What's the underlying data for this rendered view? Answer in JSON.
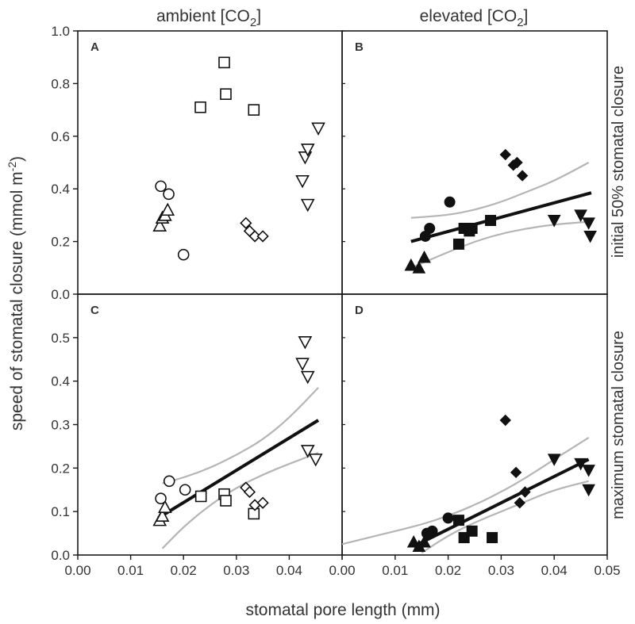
{
  "figure": {
    "column_titles": [
      "ambient [CO",
      "elevated [CO"
    ],
    "column_subscript": "2",
    "column_suffix": "]",
    "row_labels": [
      "initial 50% stomatal closure",
      "maximum stomatal closure"
    ],
    "xlabel": "stomatal pore length (mm)",
    "ylabel_main": "speed of stomatal closure (mmol m",
    "ylabel_sup": "-2",
    "ylabel_end": ")"
  },
  "chart_data": [
    {
      "panel": "A",
      "type": "scatter",
      "co2": "ambient",
      "row": "initial 50% stomatal closure",
      "xlim": [
        0,
        0.05
      ],
      "ylim": [
        0,
        1.0
      ],
      "xticks": [
        0,
        0.01,
        0.02,
        0.03,
        0.04,
        0.05
      ],
      "xtick_labels": [
        "0.00",
        "0.01",
        "0.02",
        "0.03",
        "0.04",
        "0.05"
      ],
      "yticks": [
        0,
        0.2,
        0.4,
        0.6,
        0.8,
        1.0
      ],
      "ytick_labels": [
        "0.0",
        "0.2",
        "0.4",
        "0.6",
        "0.8",
        "1.0"
      ],
      "filled": false,
      "series": [
        {
          "marker": "triangle-up",
          "points": [
            [
              0.0155,
              0.26
            ],
            [
              0.016,
              0.29
            ],
            [
              0.0165,
              0.3
            ],
            [
              0.017,
              0.32
            ]
          ]
        },
        {
          "marker": "circle",
          "points": [
            [
              0.0157,
              0.41
            ],
            [
              0.0172,
              0.38
            ],
            [
              0.02,
              0.15
            ]
          ]
        },
        {
          "marker": "square",
          "points": [
            [
              0.0232,
              0.71
            ],
            [
              0.0277,
              0.88
            ],
            [
              0.028,
              0.76
            ],
            [
              0.0333,
              0.7
            ]
          ]
        },
        {
          "marker": "diamond",
          "points": [
            [
              0.0318,
              0.27
            ],
            [
              0.0325,
              0.24
            ],
            [
              0.0335,
              0.22
            ],
            [
              0.035,
              0.22
            ]
          ]
        },
        {
          "marker": "triangle-down",
          "points": [
            [
              0.0425,
              0.43
            ],
            [
              0.043,
              0.52
            ],
            [
              0.0435,
              0.55
            ],
            [
              0.0435,
              0.34
            ],
            [
              0.0455,
              0.63
            ]
          ]
        }
      ]
    },
    {
      "panel": "B",
      "type": "scatter",
      "co2": "elevated",
      "row": "initial 50% stomatal closure",
      "xlim": [
        0,
        0.05
      ],
      "ylim": [
        0,
        1.0
      ],
      "xticks": [
        0,
        0.01,
        0.02,
        0.03,
        0.04,
        0.05
      ],
      "xtick_labels": [
        "0.00",
        "0.01",
        "0.02",
        "0.03",
        "0.04",
        "0.05"
      ],
      "yticks": [
        0,
        0.2,
        0.4,
        0.6,
        0.8,
        1.0
      ],
      "ytick_labels": [
        "0.0",
        "0.2",
        "0.4",
        "0.6",
        "0.8",
        "1.0"
      ],
      "filled": true,
      "series": [
        {
          "marker": "triangle-up",
          "points": [
            [
              0.013,
              0.11
            ],
            [
              0.0145,
              0.1
            ],
            [
              0.0155,
              0.14
            ]
          ]
        },
        {
          "marker": "circle",
          "points": [
            [
              0.0157,
              0.22
            ],
            [
              0.0165,
              0.25
            ],
            [
              0.0203,
              0.35
            ]
          ]
        },
        {
          "marker": "square",
          "points": [
            [
              0.022,
              0.19
            ],
            [
              0.023,
              0.25
            ],
            [
              0.024,
              0.24
            ],
            [
              0.0245,
              0.25
            ],
            [
              0.028,
              0.28
            ]
          ]
        },
        {
          "marker": "diamond",
          "points": [
            [
              0.0308,
              0.53
            ],
            [
              0.0323,
              0.49
            ],
            [
              0.033,
              0.5
            ],
            [
              0.034,
              0.45
            ]
          ]
        },
        {
          "marker": "triangle-down",
          "points": [
            [
              0.04,
              0.28
            ],
            [
              0.045,
              0.3
            ],
            [
              0.0465,
              0.27
            ],
            [
              0.0468,
              0.22
            ]
          ]
        }
      ],
      "fit": {
        "x": [
          0.013,
          0.047
        ],
        "y": [
          0.2,
          0.385
        ]
      },
      "confidence_band": {
        "x": [
          0.013,
          0.02,
          0.025,
          0.03,
          0.035,
          0.04,
          0.0465
        ],
        "upper": [
          0.29,
          0.3,
          0.32,
          0.35,
          0.39,
          0.43,
          0.5
        ],
        "lower": [
          0.1,
          0.16,
          0.2,
          0.23,
          0.25,
          0.265,
          0.275
        ]
      }
    },
    {
      "panel": "C",
      "type": "scatter",
      "co2": "ambient",
      "row": "maximum stomatal closure",
      "xlim": [
        0,
        0.05
      ],
      "ylim": [
        0,
        0.6
      ],
      "xticks": [
        0,
        0.01,
        0.02,
        0.03,
        0.04,
        0.05
      ],
      "xtick_labels": [
        "0.00",
        "0.01",
        "0.02",
        "0.03",
        "0.04",
        "0.05"
      ],
      "yticks": [
        0,
        0.1,
        0.2,
        0.3,
        0.4,
        0.5
      ],
      "ytick_labels": [
        "0.0",
        "0.1",
        "0.2",
        "0.3",
        "0.4",
        "0.5"
      ],
      "filled": false,
      "series": [
        {
          "marker": "triangle-up",
          "points": [
            [
              0.0155,
              0.08
            ],
            [
              0.016,
              0.09
            ],
            [
              0.0165,
              0.11
            ]
          ]
        },
        {
          "marker": "circle",
          "points": [
            [
              0.0157,
              0.13
            ],
            [
              0.0173,
              0.17
            ],
            [
              0.0203,
              0.15
            ]
          ]
        },
        {
          "marker": "square",
          "points": [
            [
              0.0233,
              0.135
            ],
            [
              0.0277,
              0.14
            ],
            [
              0.028,
              0.125
            ],
            [
              0.0333,
              0.095
            ]
          ]
        },
        {
          "marker": "diamond",
          "points": [
            [
              0.0318,
              0.155
            ],
            [
              0.0325,
              0.145
            ],
            [
              0.0335,
              0.115
            ],
            [
              0.035,
              0.12
            ]
          ]
        },
        {
          "marker": "triangle-down",
          "points": [
            [
              0.0425,
              0.44
            ],
            [
              0.043,
              0.49
            ],
            [
              0.0435,
              0.41
            ],
            [
              0.0435,
              0.24
            ],
            [
              0.045,
              0.22
            ]
          ]
        }
      ],
      "fit": {
        "x": [
          0.0152,
          0.0455
        ],
        "y": [
          0.085,
          0.31
        ]
      },
      "confidence_band": {
        "x": [
          0.016,
          0.02,
          0.025,
          0.03,
          0.035,
          0.04,
          0.0455
        ],
        "upper": [
          0.165,
          0.178,
          0.2,
          0.23,
          0.265,
          0.315,
          0.385
        ],
        "lower": [
          0.015,
          0.065,
          0.115,
          0.155,
          0.185,
          0.21,
          0.235
        ]
      }
    },
    {
      "panel": "D",
      "type": "scatter",
      "co2": "elevated",
      "row": "maximum stomatal closure",
      "xlim": [
        0,
        0.05
      ],
      "ylim": [
        0,
        0.6
      ],
      "xticks": [
        0,
        0.01,
        0.02,
        0.03,
        0.04,
        0.05
      ],
      "xtick_labels": [
        "0.00",
        "0.01",
        "0.02",
        "0.03",
        "0.04",
        "0.05"
      ],
      "yticks": [
        0,
        0.1,
        0.2,
        0.3,
        0.4,
        0.5
      ],
      "ytick_labels": [
        "0.0",
        "0.1",
        "0.2",
        "0.3",
        "0.4",
        "0.5"
      ],
      "filled": true,
      "series": [
        {
          "marker": "triangle-up",
          "points": [
            [
              0.0135,
              0.03
            ],
            [
              0.0145,
              0.02
            ],
            [
              0.0155,
              0.03
            ]
          ]
        },
        {
          "marker": "circle",
          "points": [
            [
              0.016,
              0.05
            ],
            [
              0.017,
              0.055
            ],
            [
              0.02,
              0.085
            ]
          ]
        },
        {
          "marker": "square",
          "points": [
            [
              0.022,
              0.08
            ],
            [
              0.023,
              0.04
            ],
            [
              0.0245,
              0.055
            ],
            [
              0.0283,
              0.04
            ]
          ]
        },
        {
          "marker": "diamond",
          "points": [
            [
              0.0308,
              0.31
            ],
            [
              0.0328,
              0.19
            ],
            [
              0.0335,
              0.12
            ],
            [
              0.0345,
              0.145
            ]
          ]
        },
        {
          "marker": "triangle-down",
          "points": [
            [
              0.04,
              0.22
            ],
            [
              0.045,
              0.21
            ],
            [
              0.0465,
              0.195
            ],
            [
              0.0465,
              0.15
            ]
          ]
        }
      ],
      "fit": {
        "x": [
          0.0135,
          0.0465
        ],
        "y": [
          0.02,
          0.22
        ]
      },
      "confidence_band": {
        "x": [
          0.0,
          0.005,
          0.01,
          0.015,
          0.02,
          0.025,
          0.03,
          0.035,
          0.04,
          0.0465
        ],
        "upper": [
          0.025,
          0.04,
          0.055,
          0.07,
          0.09,
          0.115,
          0.145,
          0.18,
          0.22,
          0.27
        ],
        "lower": [
          null,
          null,
          null,
          0.005,
          0.045,
          0.075,
          0.1,
          0.125,
          0.15,
          0.17
        ]
      }
    }
  ]
}
